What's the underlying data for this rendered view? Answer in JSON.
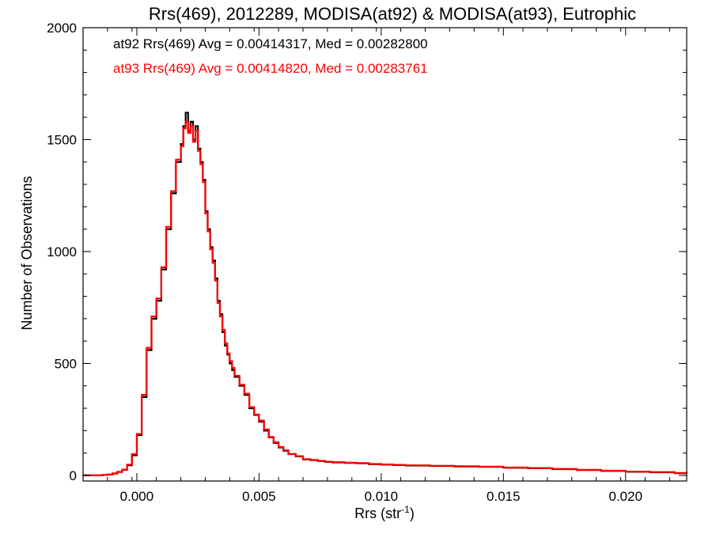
{
  "chart_data": {
    "type": "line",
    "title": "Rrs(469), 2012289, MODISA(at92) & MODISA(at93), Eutrophic",
    "xlabel": "Rrs (str",
    "xlabel_sup": "-1",
    "xlabel_close": ")",
    "ylabel": "Number of Observations",
    "xlim": [
      -0.0022,
      0.0225
    ],
    "ylim": [
      -25,
      2000
    ],
    "xticks": [
      0.0,
      0.005,
      0.01,
      0.015,
      0.02
    ],
    "xtick_labels": [
      "0.000",
      "0.005",
      "0.010",
      "0.015",
      "0.020"
    ],
    "yticks": [
      0,
      500,
      1000,
      1500,
      2000
    ],
    "ytick_labels": [
      "0",
      "500",
      "1000",
      "1500",
      "2000"
    ],
    "legend": [
      "at92 Rrs(469) Avg = 0.00414317, Med = 0.00282800",
      "at93 Rrs(469) Avg = 0.00414820, Med = 0.00283761"
    ],
    "grid": false,
    "legend_position": "top-left",
    "colors": {
      "at92": "#000000",
      "at93": "#ff0000"
    },
    "series_keys": [
      "at92",
      "at93"
    ],
    "x": [
      -0.0022,
      -0.0018,
      -0.0014,
      -0.0012,
      -0.001,
      -0.0008,
      -0.0006,
      -0.0004,
      -0.0002,
      0.0,
      0.0002,
      0.0004,
      0.0006,
      0.0008,
      0.001,
      0.0012,
      0.0014,
      0.0016,
      0.0018,
      0.0019,
      0.002,
      0.0021,
      0.0022,
      0.0023,
      0.0024,
      0.0025,
      0.0026,
      0.0027,
      0.0028,
      0.0029,
      0.003,
      0.0031,
      0.0032,
      0.0033,
      0.0034,
      0.0035,
      0.0036,
      0.0037,
      0.0038,
      0.0039,
      0.004,
      0.0042,
      0.0044,
      0.0046,
      0.0048,
      0.005,
      0.0052,
      0.0054,
      0.0056,
      0.0058,
      0.006,
      0.0062,
      0.0065,
      0.0068,
      0.0071,
      0.0074,
      0.0077,
      0.008,
      0.0085,
      0.009,
      0.0095,
      0.01,
      0.0105,
      0.011,
      0.012,
      0.013,
      0.014,
      0.015,
      0.016,
      0.017,
      0.018,
      0.019,
      0.02,
      0.021,
      0.022,
      0.0225
    ],
    "series": [
      {
        "key": "at92",
        "values": [
          0,
          0,
          2,
          4,
          8,
          15,
          25,
          45,
          90,
          180,
          350,
          560,
          700,
          780,
          920,
          1100,
          1260,
          1400,
          1480,
          1560,
          1620,
          1540,
          1580,
          1500,
          1560,
          1460,
          1400,
          1320,
          1180,
          1100,
          1020,
          960,
          880,
          780,
          720,
          640,
          580,
          540,
          500,
          470,
          440,
          400,
          360,
          300,
          270,
          240,
          200,
          170,
          145,
          125,
          110,
          95,
          85,
          72,
          68,
          64,
          60,
          58,
          56,
          54,
          50,
          48,
          46,
          44,
          42,
          40,
          38,
          34,
          32,
          28,
          24,
          20,
          16,
          14,
          10,
          8
        ]
      },
      {
        "key": "at93",
        "values": [
          0,
          0,
          2,
          4,
          9,
          16,
          26,
          48,
          95,
          185,
          360,
          570,
          710,
          790,
          930,
          1110,
          1270,
          1410,
          1470,
          1550,
          1580,
          1530,
          1560,
          1490,
          1540,
          1450,
          1390,
          1310,
          1170,
          1090,
          1010,
          950,
          870,
          770,
          710,
          650,
          590,
          545,
          510,
          480,
          445,
          405,
          365,
          305,
          272,
          245,
          205,
          172,
          148,
          127,
          112,
          96,
          86,
          73,
          69,
          65,
          61,
          59,
          57,
          55,
          51,
          49,
          47,
          45,
          43,
          41,
          39,
          35,
          33,
          29,
          25,
          21,
          17,
          15,
          11,
          9
        ]
      }
    ]
  }
}
